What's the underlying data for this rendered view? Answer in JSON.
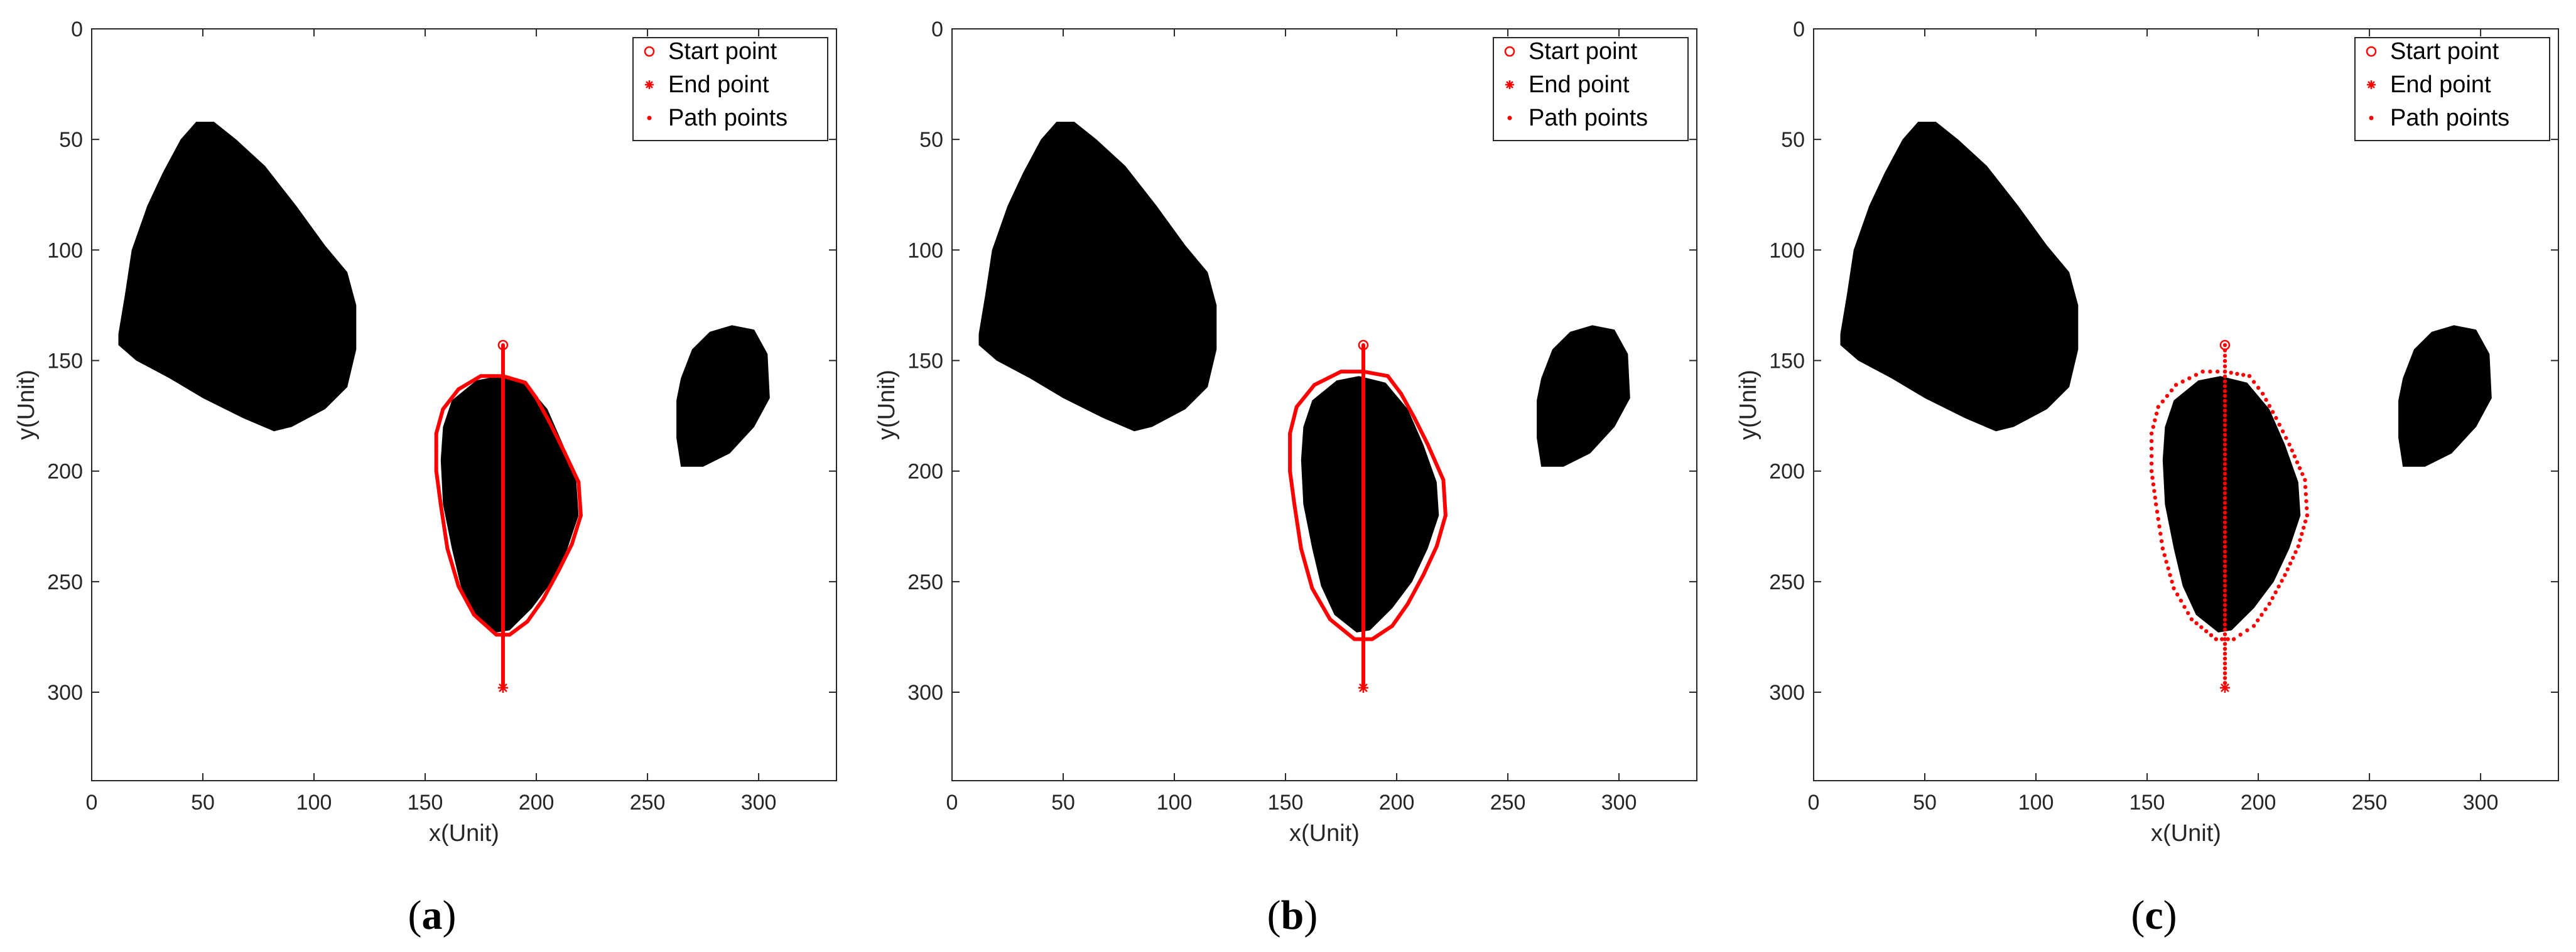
{
  "chart_data": [
    {
      "type": "scatter",
      "panel_label": "a",
      "path_style": "line",
      "xlabel": "x(Unit)",
      "ylabel": "y(Unit)",
      "xlim": [
        0,
        335
      ],
      "ylim": [
        0,
        340
      ],
      "y_reversed": true,
      "xticks": [
        0,
        50,
        100,
        150,
        200,
        250,
        300
      ],
      "yticks": [
        0,
        50,
        100,
        150,
        200,
        250,
        300
      ],
      "legend_position": "top-right",
      "legend": [
        "Start point",
        "End point",
        "Path points"
      ],
      "start_point": [
        185,
        143
      ],
      "end_point": [
        185,
        298
      ],
      "path_points": [
        [
          185,
          143
        ],
        [
          185,
          157
        ],
        [
          175,
          157
        ],
        [
          165,
          163
        ],
        [
          158,
          172
        ],
        [
          155,
          183
        ],
        [
          155,
          200
        ],
        [
          157,
          215
        ],
        [
          160,
          235
        ],
        [
          165,
          252
        ],
        [
          172,
          265
        ],
        [
          182,
          274
        ],
        [
          188,
          274
        ],
        [
          196,
          268
        ],
        [
          203,
          258
        ],
        [
          210,
          245
        ],
        [
          216,
          233
        ],
        [
          220,
          220
        ],
        [
          219,
          205
        ],
        [
          212,
          190
        ],
        [
          206,
          178
        ],
        [
          200,
          167
        ],
        [
          195,
          160
        ],
        [
          185,
          157
        ],
        [
          185,
          298
        ]
      ],
      "obstacles": [
        {
          "name": "obstacle-large",
          "color": "#000000",
          "points": [
            [
              12,
              138
            ],
            [
              15,
              120
            ],
            [
              18,
              100
            ],
            [
              25,
              80
            ],
            [
              32,
              65
            ],
            [
              40,
              50
            ],
            [
              47,
              42
            ],
            [
              55,
              42
            ],
            [
              65,
              50
            ],
            [
              78,
              62
            ],
            [
              92,
              80
            ],
            [
              105,
              98
            ],
            [
              115,
              110
            ],
            [
              119,
              125
            ],
            [
              119,
              145
            ],
            [
              115,
              162
            ],
            [
              105,
              172
            ],
            [
              90,
              180
            ],
            [
              82,
              182
            ],
            [
              68,
              176
            ],
            [
              50,
              167
            ],
            [
              35,
              158
            ],
            [
              20,
              150
            ],
            [
              12,
              143
            ]
          ]
        },
        {
          "name": "obstacle-middle",
          "color": "#000000",
          "points": [
            [
              183,
              157
            ],
            [
              195,
              160
            ],
            [
              205,
              172
            ],
            [
              212,
              188
            ],
            [
              218,
              205
            ],
            [
              219,
              220
            ],
            [
              214,
              235
            ],
            [
              207,
              250
            ],
            [
              198,
              262
            ],
            [
              188,
              272
            ],
            [
              182,
              273
            ],
            [
              172,
              265
            ],
            [
              166,
              252
            ],
            [
              162,
              235
            ],
            [
              158,
              215
            ],
            [
              157,
              195
            ],
            [
              158,
              180
            ],
            [
              162,
              168
            ],
            [
              173,
              159
            ]
          ]
        },
        {
          "name": "obstacle-right",
          "color": "#000000",
          "points": [
            [
              265,
              158
            ],
            [
              270,
              145
            ],
            [
              278,
              137
            ],
            [
              288,
              134
            ],
            [
              298,
              136
            ],
            [
              304,
              147
            ],
            [
              305,
              167
            ],
            [
              298,
              180
            ],
            [
              287,
              192
            ],
            [
              275,
              198
            ],
            [
              265,
              198
            ],
            [
              263,
              185
            ],
            [
              263,
              168
            ]
          ]
        }
      ]
    },
    {
      "type": "scatter",
      "panel_label": "b",
      "path_style": "line-offset",
      "xlabel": "x(Unit)",
      "ylabel": "y(Unit)",
      "xlim": [
        0,
        335
      ],
      "ylim": [
        0,
        340
      ],
      "y_reversed": true,
      "xticks": [
        0,
        50,
        100,
        150,
        200,
        250,
        300
      ],
      "yticks": [
        0,
        50,
        100,
        150,
        200,
        250,
        300
      ],
      "legend_position": "top-right",
      "legend": [
        "Start point",
        "End point",
        "Path points"
      ],
      "start_point": [
        185,
        143
      ],
      "end_point": [
        185,
        298
      ],
      "path_points": [
        [
          185,
          143
        ],
        [
          185,
          155
        ],
        [
          175,
          155
        ],
        [
          163,
          161
        ],
        [
          155,
          171
        ],
        [
          152,
          183
        ],
        [
          152,
          200
        ],
        [
          154,
          215
        ],
        [
          157,
          235
        ],
        [
          162,
          253
        ],
        [
          170,
          267
        ],
        [
          181,
          276
        ],
        [
          189,
          276
        ],
        [
          198,
          270
        ],
        [
          205,
          260
        ],
        [
          212,
          247
        ],
        [
          218,
          234
        ],
        [
          222,
          220
        ],
        [
          221,
          204
        ],
        [
          214,
          188
        ],
        [
          208,
          176
        ],
        [
          202,
          165
        ],
        [
          196,
          157
        ],
        [
          185,
          155
        ],
        [
          185,
          298
        ]
      ],
      "obstacles": [
        {
          "name": "obstacle-large",
          "color": "#000000",
          "points": [
            [
              12,
              138
            ],
            [
              15,
              120
            ],
            [
              18,
              100
            ],
            [
              25,
              80
            ],
            [
              32,
              65
            ],
            [
              40,
              50
            ],
            [
              47,
              42
            ],
            [
              55,
              42
            ],
            [
              65,
              50
            ],
            [
              78,
              62
            ],
            [
              92,
              80
            ],
            [
              105,
              98
            ],
            [
              115,
              110
            ],
            [
              119,
              125
            ],
            [
              119,
              145
            ],
            [
              115,
              162
            ],
            [
              105,
              172
            ],
            [
              90,
              180
            ],
            [
              82,
              182
            ],
            [
              68,
              176
            ],
            [
              50,
              167
            ],
            [
              35,
              158
            ],
            [
              20,
              150
            ],
            [
              12,
              143
            ]
          ]
        },
        {
          "name": "obstacle-middle",
          "color": "#000000",
          "points": [
            [
              183,
              157
            ],
            [
              195,
              160
            ],
            [
              205,
              172
            ],
            [
              212,
              188
            ],
            [
              218,
              205
            ],
            [
              219,
              220
            ],
            [
              214,
              235
            ],
            [
              207,
              250
            ],
            [
              198,
              262
            ],
            [
              188,
              272
            ],
            [
              182,
              273
            ],
            [
              172,
              265
            ],
            [
              166,
              252
            ],
            [
              162,
              235
            ],
            [
              158,
              215
            ],
            [
              157,
              195
            ],
            [
              158,
              180
            ],
            [
              162,
              168
            ],
            [
              173,
              159
            ]
          ]
        },
        {
          "name": "obstacle-right",
          "color": "#000000",
          "points": [
            [
              265,
              158
            ],
            [
              270,
              145
            ],
            [
              278,
              137
            ],
            [
              288,
              134
            ],
            [
              298,
              136
            ],
            [
              304,
              147
            ],
            [
              305,
              167
            ],
            [
              298,
              180
            ],
            [
              287,
              192
            ],
            [
              275,
              198
            ],
            [
              265,
              198
            ],
            [
              263,
              185
            ],
            [
              263,
              168
            ]
          ]
        }
      ]
    },
    {
      "type": "scatter",
      "panel_label": "c",
      "path_style": "dots",
      "xlabel": "x(Unit)",
      "ylabel": "y(Unit)",
      "xlim": [
        0,
        335
      ],
      "ylim": [
        0,
        340
      ],
      "y_reversed": true,
      "xticks": [
        0,
        50,
        100,
        150,
        200,
        250,
        300
      ],
      "yticks": [
        0,
        50,
        100,
        150,
        200,
        250,
        300
      ],
      "legend_position": "top-right",
      "legend": [
        "Start point",
        "End point",
        "Path points"
      ],
      "start_point": [
        185,
        143
      ],
      "end_point": [
        185,
        298
      ],
      "path_points": [
        [
          185,
          143
        ],
        [
          185,
          155
        ],
        [
          175,
          155
        ],
        [
          163,
          161
        ],
        [
          155,
          171
        ],
        [
          152,
          183
        ],
        [
          152,
          200
        ],
        [
          154,
          215
        ],
        [
          157,
          235
        ],
        [
          162,
          253
        ],
        [
          170,
          267
        ],
        [
          181,
          276
        ],
        [
          189,
          276
        ],
        [
          198,
          270
        ],
        [
          205,
          260
        ],
        [
          212,
          247
        ],
        [
          218,
          234
        ],
        [
          222,
          220
        ],
        [
          221,
          204
        ],
        [
          214,
          188
        ],
        [
          208,
          176
        ],
        [
          202,
          165
        ],
        [
          196,
          157
        ],
        [
          185,
          155
        ],
        [
          185,
          298
        ]
      ],
      "obstacles": [
        {
          "name": "obstacle-large",
          "color": "#000000",
          "points": [
            [
              12,
              138
            ],
            [
              15,
              120
            ],
            [
              18,
              100
            ],
            [
              25,
              80
            ],
            [
              32,
              65
            ],
            [
              40,
              50
            ],
            [
              47,
              42
            ],
            [
              55,
              42
            ],
            [
              65,
              50
            ],
            [
              78,
              62
            ],
            [
              92,
              80
            ],
            [
              105,
              98
            ],
            [
              115,
              110
            ],
            [
              119,
              125
            ],
            [
              119,
              145
            ],
            [
              115,
              162
            ],
            [
              105,
              172
            ],
            [
              90,
              180
            ],
            [
              82,
              182
            ],
            [
              68,
              176
            ],
            [
              50,
              167
            ],
            [
              35,
              158
            ],
            [
              20,
              150
            ],
            [
              12,
              143
            ]
          ]
        },
        {
          "name": "obstacle-middle",
          "color": "#000000",
          "points": [
            [
              183,
              157
            ],
            [
              195,
              160
            ],
            [
              205,
              172
            ],
            [
              212,
              188
            ],
            [
              218,
              205
            ],
            [
              219,
              220
            ],
            [
              214,
              235
            ],
            [
              207,
              250
            ],
            [
              198,
              262
            ],
            [
              188,
              272
            ],
            [
              182,
              273
            ],
            [
              172,
              265
            ],
            [
              166,
              252
            ],
            [
              162,
              235
            ],
            [
              158,
              215
            ],
            [
              157,
              195
            ],
            [
              158,
              180
            ],
            [
              162,
              168
            ],
            [
              173,
              159
            ]
          ]
        },
        {
          "name": "obstacle-right",
          "color": "#000000",
          "points": [
            [
              265,
              158
            ],
            [
              270,
              145
            ],
            [
              278,
              137
            ],
            [
              288,
              134
            ],
            [
              298,
              136
            ],
            [
              304,
              147
            ],
            [
              305,
              167
            ],
            [
              298,
              180
            ],
            [
              287,
              192
            ],
            [
              275,
              198
            ],
            [
              265,
              198
            ],
            [
              263,
              185
            ],
            [
              263,
              168
            ]
          ]
        }
      ]
    }
  ],
  "colors": {
    "path": "#ff0000",
    "obstacle": "#000000",
    "axis": "#262626",
    "background": "#ffffff"
  }
}
